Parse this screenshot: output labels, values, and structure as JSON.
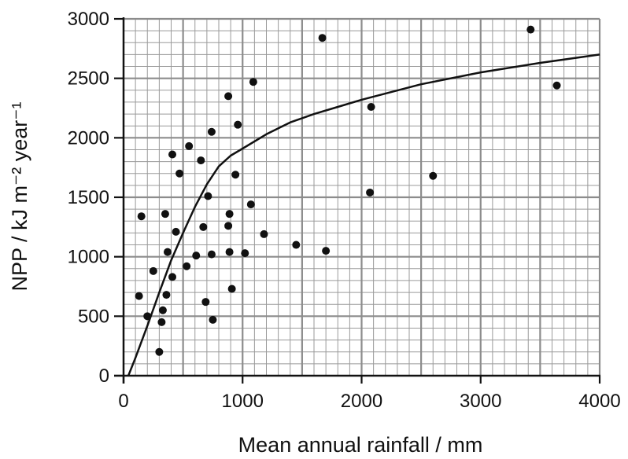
{
  "chart_data": {
    "type": "scatter",
    "xlabel": "Mean annual rainfall / mm",
    "ylabel": "NPP / kJ m⁻² year⁻¹",
    "xlim": [
      0,
      4000
    ],
    "ylim": [
      0,
      3000
    ],
    "x_ticks": [
      0,
      1000,
      2000,
      3000,
      4000
    ],
    "y_ticks": [
      0,
      500,
      1000,
      1500,
      2000,
      2500,
      3000
    ],
    "x_tick_labels": [
      "0",
      "1000",
      "2000",
      "3000",
      "4000"
    ],
    "y_tick_labels": [
      "0",
      "500",
      "1000",
      "1500",
      "2000",
      "2500",
      "3000"
    ],
    "grid": true,
    "points": [
      [
        130,
        670
      ],
      [
        150,
        1340
      ],
      [
        200,
        500
      ],
      [
        250,
        880
      ],
      [
        300,
        200
      ],
      [
        320,
        450
      ],
      [
        330,
        550
      ],
      [
        350,
        1360
      ],
      [
        360,
        680
      ],
      [
        370,
        1040
      ],
      [
        410,
        1860
      ],
      [
        410,
        830
      ],
      [
        440,
        1210
      ],
      [
        470,
        1700
      ],
      [
        530,
        920
      ],
      [
        550,
        1930
      ],
      [
        610,
        1010
      ],
      [
        650,
        1810
      ],
      [
        670,
        1250
      ],
      [
        690,
        620
      ],
      [
        710,
        1510
      ],
      [
        740,
        2050
      ],
      [
        740,
        1020
      ],
      [
        750,
        470
      ],
      [
        880,
        2350
      ],
      [
        880,
        1260
      ],
      [
        890,
        1360
      ],
      [
        890,
        1040
      ],
      [
        910,
        730
      ],
      [
        940,
        1690
      ],
      [
        960,
        2110
      ],
      [
        1020,
        1030
      ],
      [
        1070,
        1440
      ],
      [
        1090,
        2470
      ],
      [
        1180,
        1190
      ],
      [
        1450,
        1100
      ],
      [
        1670,
        2840
      ],
      [
        1700,
        1050
      ],
      [
        2070,
        1540
      ],
      [
        2080,
        2260
      ],
      [
        2600,
        1680
      ],
      [
        3420,
        2910
      ],
      [
        3640,
        2440
      ]
    ],
    "trend_line": {
      "x": [
        40,
        100,
        200,
        300,
        400,
        500,
        600,
        700,
        800,
        900,
        1000,
        1200,
        1400,
        1600,
        1800,
        2000,
        2500,
        3000,
        3500,
        4000
      ],
      "y": [
        0,
        150,
        420,
        700,
        970,
        1200,
        1420,
        1610,
        1760,
        1850,
        1910,
        2030,
        2130,
        2200,
        2260,
        2320,
        2450,
        2550,
        2630,
        2700
      ]
    }
  }
}
